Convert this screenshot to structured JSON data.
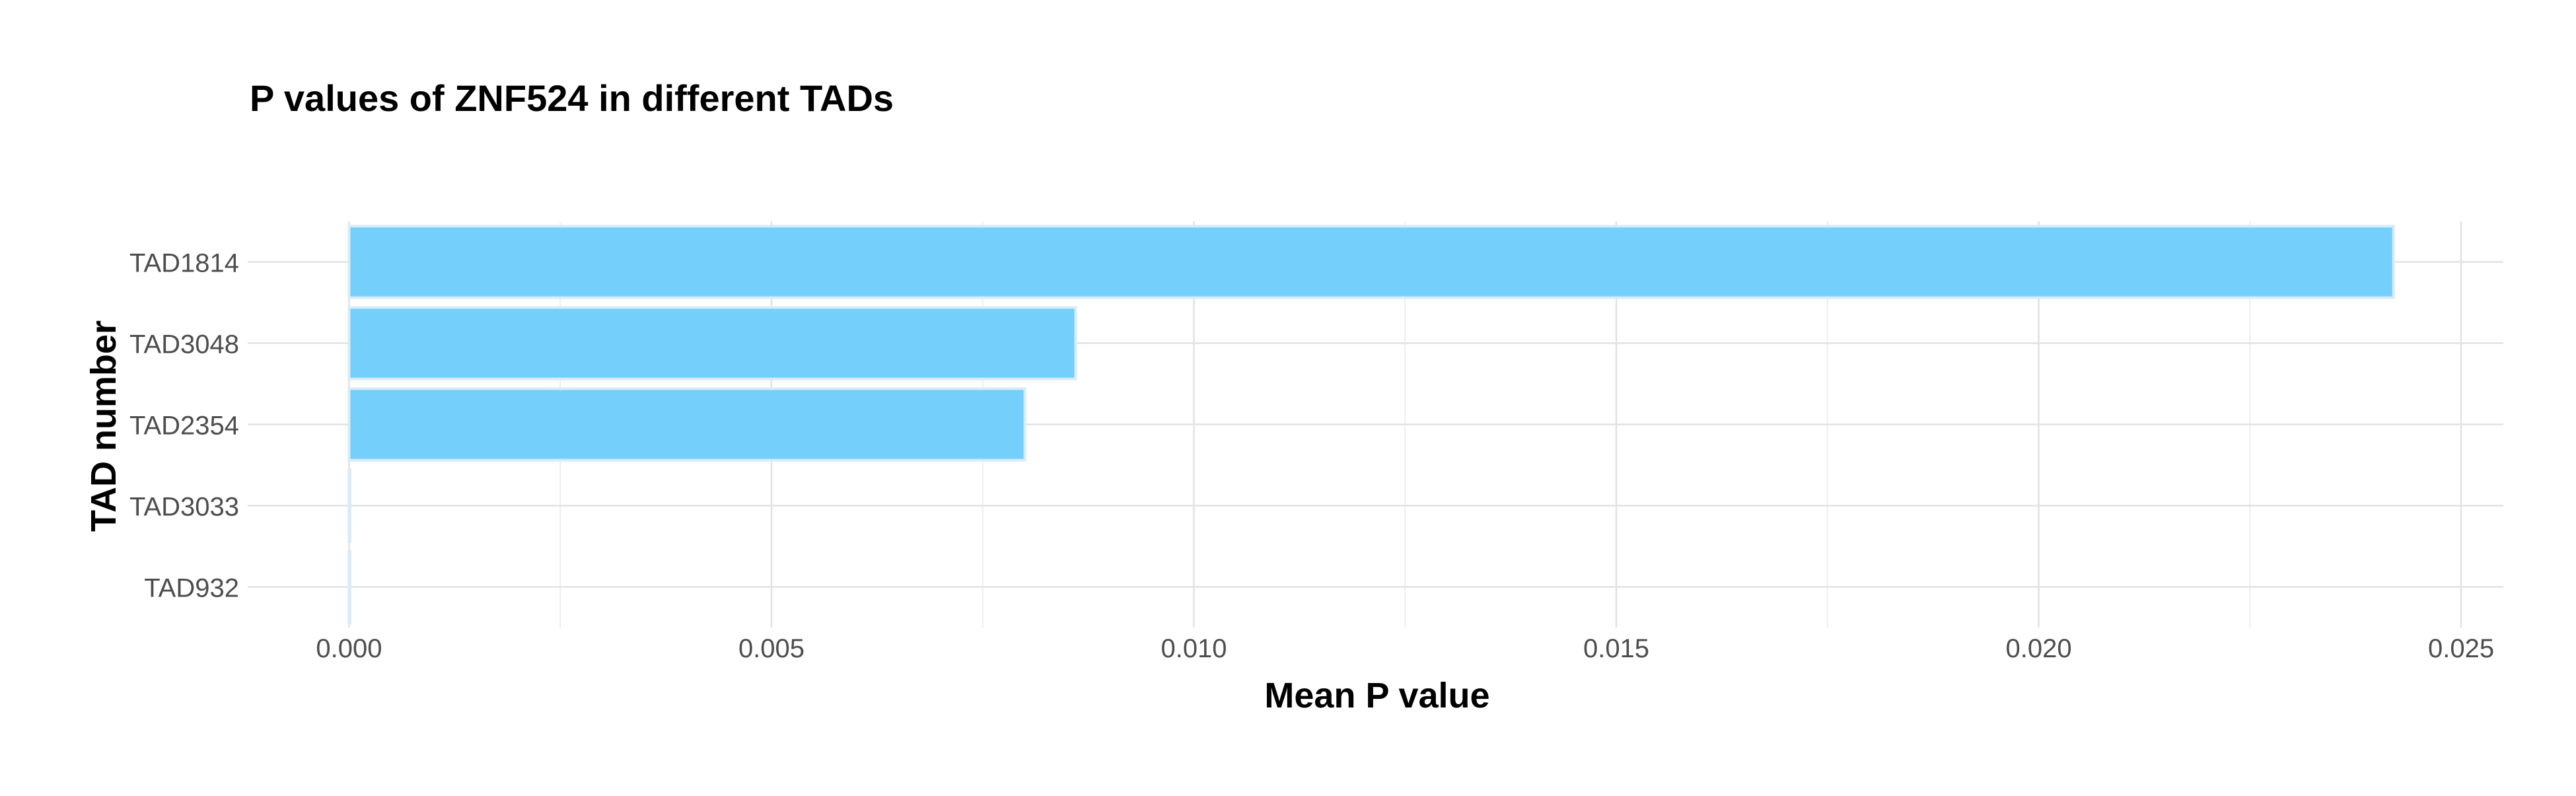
{
  "chart_data": {
    "type": "bar",
    "orientation": "horizontal",
    "title": "P values of ZNF524 in different TADs",
    "xlabel": "Mean P value",
    "ylabel": "TAD number",
    "categories": [
      "TAD1814",
      "TAD3048",
      "TAD2354",
      "TAD3033",
      "TAD932"
    ],
    "values": [
      0.0242,
      0.0086,
      0.008,
      0.0,
      0.0
    ],
    "xlim": [
      -0.0012,
      0.0255
    ],
    "x_ticks": [
      0.0,
      0.005,
      0.01,
      0.015,
      0.02,
      0.025
    ],
    "x_tick_labels": [
      "0.000",
      "0.005",
      "0.010",
      "0.015",
      "0.020",
      "0.025"
    ],
    "grid": true,
    "legend": "none",
    "bar_color": "#75CFFB",
    "bar_outline_color": "#D6ECF8",
    "grid_color": "#E2E2E2"
  }
}
